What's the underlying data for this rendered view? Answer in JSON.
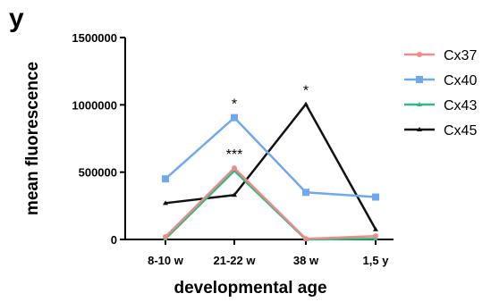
{
  "panel_label": "y",
  "chart_data": {
    "type": "line",
    "xlabel": "developmental age",
    "ylabel": "mean fluorescence",
    "categories": [
      "8-10 w",
      "21-22 w",
      "38 w",
      "1,5 y"
    ],
    "ylim": [
      0,
      1500000
    ],
    "yticks": [
      0,
      500000,
      1000000,
      1500000
    ],
    "ytick_labels": [
      "0",
      "500000",
      "1000000",
      "1500000"
    ],
    "grid": false,
    "legend_position": "right",
    "series": [
      {
        "name": "Cx37",
        "color": "#ef8a8a",
        "marker": "circle",
        "values": [
          20000,
          530000,
          5000,
          25000
        ]
      },
      {
        "name": "Cx40",
        "color": "#6fa8ee",
        "marker": "square",
        "values": [
          450000,
          905000,
          350000,
          315000
        ]
      },
      {
        "name": "Cx43",
        "color": "#2fba84",
        "marker": "triangle",
        "values": [
          5000,
          510000,
          0,
          5000
        ]
      },
      {
        "name": "Cx45",
        "color": "#111111",
        "marker": "triangle",
        "values": [
          270000,
          330000,
          1005000,
          75000
        ]
      }
    ],
    "annotations": [
      {
        "text": "*",
        "category": "21-22 w",
        "value": 905000
      },
      {
        "text": "***",
        "category": "21-22 w",
        "value": 530000
      },
      {
        "text": "*",
        "category": "38 w",
        "value": 1005000
      }
    ]
  }
}
